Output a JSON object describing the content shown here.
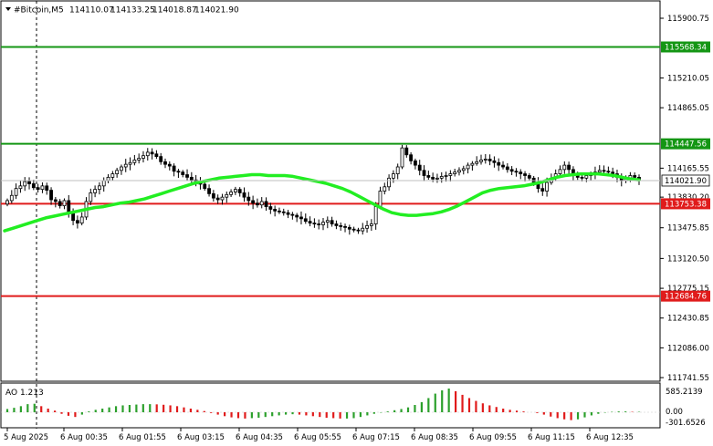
{
  "header": {
    "symbol": "#Bitcoin,M5",
    "open": "114110.07",
    "high": "114133.25",
    "low": "114018.87",
    "close": "114021.90"
  },
  "indicator": {
    "label": "AO 1.213",
    "scale_top": "585.2139",
    "scale_zero": "0.00",
    "scale_bottom": "-301.6526"
  },
  "price_axis": {
    "ticks": [
      "115900.75",
      "115210.05",
      "114865.05",
      "114165.55",
      "113830.20",
      "113475.85",
      "113120.50",
      "112775.15",
      "112430.85",
      "112086.00",
      "111741.55"
    ],
    "tick_values": [
      115900.75,
      115210.05,
      114865.05,
      114165.55,
      113830.2,
      113475.85,
      113120.5,
      112775.15,
      112430.85,
      112086.0,
      111741.55
    ],
    "current_price_label": "114021.90"
  },
  "levels": [
    {
      "label": "115568.34",
      "value": 115568.34,
      "color": "#149614"
    },
    {
      "label": "114447.56",
      "value": 114447.56,
      "color": "#149614"
    },
    {
      "label": "113753.38",
      "value": 113753.38,
      "color": "#e01b1b"
    },
    {
      "label": "112684.76",
      "value": 112684.76,
      "color": "#e01b1b"
    }
  ],
  "time_axis": [
    "5 Aug 2025",
    "6 Aug 00:35",
    "6 Aug 01:55",
    "6 Aug 03:15",
    "6 Aug 04:35",
    "6 Aug 05:55",
    "6 Aug 07:15",
    "6 Aug 08:35",
    "6 Aug 09:55",
    "6 Aug 11:15",
    "6 Aug 12:35"
  ],
  "colors": {
    "candle": "#000000",
    "moving_average": "#22ee22",
    "ao_up": "#2ca02c",
    "ao_down": "#e01b1b",
    "grid_border": "#000000"
  },
  "chart_data": {
    "type": "candlestick",
    "close_series": [
      113790,
      113850,
      113930,
      113960,
      114010,
      113985,
      113940,
      113920,
      113960,
      113910,
      113800,
      113780,
      113730,
      113790,
      113640,
      113560,
      113530,
      113600,
      113780,
      113880,
      113920,
      113960,
      114020,
      114060,
      114100,
      114140,
      114180,
      114210,
      114230,
      114260,
      114280,
      114310,
      114350,
      114330,
      114300,
      114240,
      114210,
      114190,
      114130,
      114120,
      114090,
      114060,
      114030,
      114010,
      113980,
      113930,
      113870,
      113820,
      113800,
      113830,
      113860,
      113890,
      113920,
      113880,
      113830,
      113790,
      113760,
      113740,
      113780,
      113720,
      113690,
      113670,
      113660,
      113650,
      113630,
      113620,
      113600,
      113580,
      113550,
      113530,
      113520,
      113510,
      113540,
      113560,
      113520,
      113500,
      113490,
      113480,
      113460,
      113450,
      113440,
      113470,
      113500,
      113520,
      113720,
      113900,
      113950,
      114050,
      114100,
      114180,
      114400,
      114320,
      114250,
      114200,
      114140,
      114080,
      114060,
      114040,
      114050,
      114070,
      114080,
      114100,
      114120,
      114140,
      114160,
      114200,
      114220,
      114240,
      114260,
      114270,
      114250,
      114230,
      114200,
      114180,
      114150,
      114130,
      114120,
      114100,
      114080,
      114050,
      114000,
      113930,
      113900,
      114000,
      114050,
      114100,
      114150,
      114200,
      114150,
      114090,
      114060,
      114050,
      114080,
      114100,
      114120,
      114140,
      114130,
      114120,
      114100,
      114060,
      114020,
      114040,
      114080,
      114060,
      114022
    ],
    "moving_average": [
      113440,
      113470,
      113500,
      113530,
      113560,
      113590,
      113610,
      113630,
      113650,
      113670,
      113690,
      113710,
      113720,
      113740,
      113760,
      113770,
      113790,
      113810,
      113840,
      113870,
      113900,
      113930,
      113960,
      113990,
      114010,
      114030,
      114050,
      114060,
      114070,
      114080,
      114090,
      114090,
      114080,
      114080,
      114080,
      114070,
      114050,
      114030,
      114010,
      113990,
      113960,
      113930,
      113890,
      113840,
      113790,
      113740,
      113690,
      113650,
      113630,
      113620,
      113620,
      113630,
      113640,
      113660,
      113690,
      113730,
      113780,
      113830,
      113880,
      113910,
      113930,
      113940,
      113950,
      113960,
      113980,
      114000,
      114030,
      114060,
      114080,
      114090,
      114100,
      114100,
      114100,
      114090,
      114080,
      114060,
      114040,
      114030
    ],
    "ao": [
      80,
      110,
      150,
      200,
      210,
      150,
      90,
      40,
      -40,
      -90,
      -120,
      -60,
      20,
      60,
      90,
      120,
      150,
      170,
      180,
      190,
      200,
      200,
      195,
      185,
      170,
      150,
      120,
      90,
      60,
      30,
      -20,
      -60,
      -100,
      -130,
      -150,
      -160,
      -150,
      -140,
      -120,
      -100,
      -80,
      -60,
      -50,
      -60,
      -80,
      -100,
      -120,
      -140,
      -150,
      -160,
      -160,
      -150,
      -120,
      -80,
      -40,
      -10,
      20,
      50,
      80,
      120,
      180,
      250,
      350,
      460,
      540,
      585,
      520,
      430,
      350,
      280,
      220,
      170,
      130,
      90,
      60,
      40,
      20,
      0,
      -20,
      -60,
      -110,
      -150,
      -180,
      -200,
      -180,
      -130,
      -80,
      -40,
      -10,
      10,
      20,
      20,
      10,
      10
    ]
  }
}
